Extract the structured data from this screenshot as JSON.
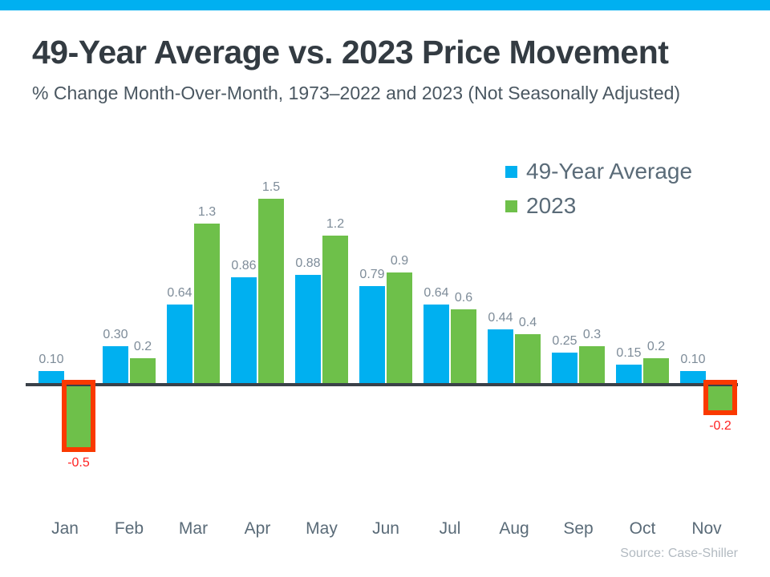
{
  "page": {
    "title": "49-Year Average vs. 2023 Price Movement",
    "subtitle": "% Change Month-Over-Month, 1973–2022 and 2023 (Not Seasonally Adjusted)",
    "source": "Source: Case-Shiller",
    "accent_bar_color": "#00B0F0"
  },
  "legend": {
    "items": [
      {
        "label": "49-Year Average",
        "color": "#00B0F0"
      },
      {
        "label": "2023",
        "color": "#6EC04A"
      }
    ]
  },
  "chart_data": {
    "type": "bar",
    "title": "49-Year Average vs. 2023 Price Movement",
    "subtitle": "% Change Month-Over-Month, 1973-2022 and 2023 (Not Seasonally Adjusted)",
    "categories": [
      "Jan",
      "Feb",
      "Mar",
      "Apr",
      "May",
      "Jun",
      "Jul",
      "Aug",
      "Sep",
      "Oct",
      "Nov"
    ],
    "series": [
      {
        "name": "49-Year Average",
        "color": "#00B0F0",
        "values": [
          0.1,
          0.3,
          0.64,
          0.86,
          0.88,
          0.79,
          0.64,
          0.44,
          0.25,
          0.15,
          0.1
        ],
        "labels": [
          "0.10",
          "0.30",
          "0.64",
          "0.86",
          "0.88",
          "0.79",
          "0.64",
          "0.44",
          "0.25",
          "0.15",
          "0.10"
        ]
      },
      {
        "name": "2023",
        "color": "#6EC04A",
        "values": [
          -0.5,
          0.2,
          1.3,
          1.5,
          1.2,
          0.9,
          0.6,
          0.4,
          0.3,
          0.2,
          -0.2
        ],
        "labels": [
          "-0.5",
          "0.2",
          "1.3",
          "1.5",
          "1.2",
          "0.9",
          "0.6",
          "0.4",
          "0.3",
          "0.2",
          "-0.2"
        ]
      }
    ],
    "highlighted_bars": [
      {
        "series": 1,
        "index": 0
      },
      {
        "series": 1,
        "index": 10
      }
    ],
    "highlight_color": "#FA3900",
    "negative_label_color": "#FF1F1F",
    "label_color": "#7E8C99",
    "axis_color": "#3A4149",
    "ylim": [
      -0.6,
      1.6
    ],
    "grid": false,
    "legend_position": "top-right"
  }
}
